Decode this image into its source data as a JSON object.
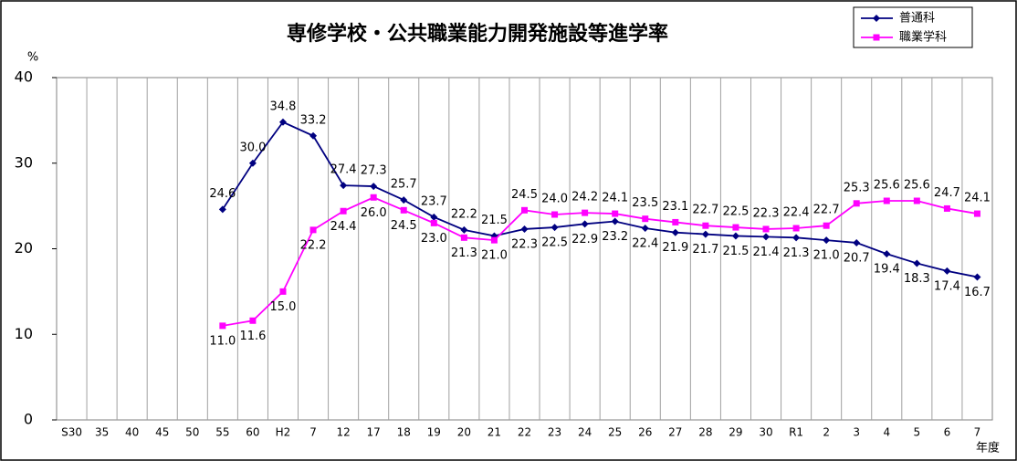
{
  "chart_data": {
    "type": "line",
    "title": "専修学校・公共職業能力開発施設等進学率",
    "y_unit": "%",
    "x_unit": "年度",
    "categories": [
      "S30",
      "35",
      "40",
      "45",
      "50",
      "55",
      "60",
      "H2",
      "7",
      "12",
      "17",
      "18",
      "19",
      "20",
      "21",
      "22",
      "23",
      "24",
      "25",
      "26",
      "27",
      "28",
      "29",
      "30",
      "R1",
      "2",
      "3",
      "4",
      "5",
      "6",
      "7"
    ],
    "series": [
      {
        "name": "普通科",
        "color": "#000080",
        "marker": "diamond",
        "values": [
          null,
          null,
          null,
          null,
          null,
          24.6,
          30.0,
          34.8,
          33.2,
          27.4,
          27.3,
          25.7,
          23.7,
          22.2,
          21.5,
          22.3,
          22.5,
          22.9,
          23.2,
          22.4,
          21.9,
          21.7,
          21.5,
          21.4,
          21.3,
          21.0,
          20.7,
          19.4,
          18.3,
          17.4,
          16.7
        ],
        "value_labels": [
          null,
          null,
          null,
          null,
          null,
          "24.6",
          "30.0",
          "34.8",
          "33.2",
          "27.4",
          "27.3",
          "25.7",
          "23.7",
          "22.2",
          "21.5",
          "22.3",
          "22.5",
          "22.9",
          "23.2",
          "22.4",
          "21.9",
          "21.7",
          "21.5",
          "21.4",
          "21.3",
          "21.0",
          "20.7",
          "19.4",
          "18.3",
          "17.4",
          "16.7"
        ]
      },
      {
        "name": "職業学科",
        "color": "#ff00ff",
        "marker": "square",
        "values": [
          null,
          null,
          null,
          null,
          null,
          11.0,
          11.6,
          15.0,
          22.2,
          24.4,
          26.0,
          24.5,
          23.0,
          21.3,
          21.0,
          24.5,
          24.0,
          24.2,
          24.1,
          23.5,
          23.1,
          22.7,
          22.5,
          22.3,
          22.4,
          22.7,
          25.3,
          25.6,
          25.6,
          24.7,
          24.1
        ],
        "value_labels": [
          null,
          null,
          null,
          null,
          null,
          "11.0",
          "11.6",
          "15.0",
          "22.2",
          "24.4",
          "26.0",
          "24.5",
          "23.0",
          "21.3",
          "21.0",
          "24.5",
          "24.0",
          "24.2",
          "24.1",
          "23.5",
          "23.1",
          "22.7",
          "22.5",
          "22.3",
          "22.4",
          "22.7",
          "25.3",
          "25.6",
          "25.6",
          "24.7",
          "24.1"
        ]
      }
    ],
    "ylim": [
      0,
      40
    ],
    "yticks": [
      0,
      10,
      20,
      30,
      40
    ],
    "grid": "vertical",
    "legend": "top-right"
  }
}
